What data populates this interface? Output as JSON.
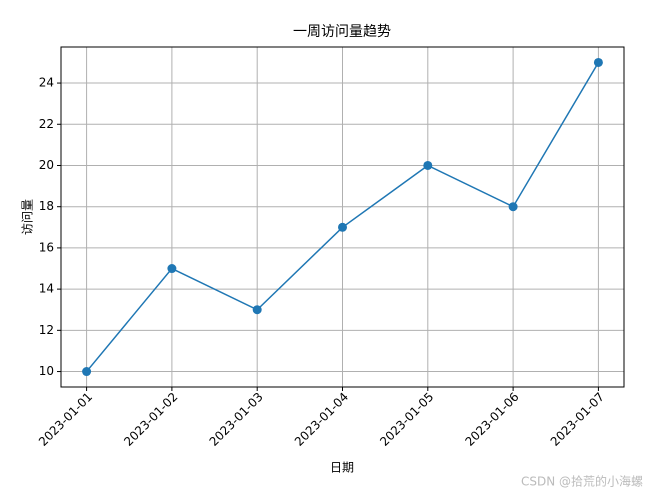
{
  "chart_data": {
    "type": "line",
    "title": "一周访问量趋势",
    "x_label": "日期",
    "y_label": "访问量",
    "categories": [
      "2023-01-01",
      "2023-01-02",
      "2023-01-03",
      "2023-01-04",
      "2023-01-05",
      "2023-01-06",
      "2023-01-07"
    ],
    "values": [
      10,
      15,
      13,
      17,
      20,
      18,
      25
    ],
    "color": "#1f77b4",
    "ylim": [
      9.25,
      25.75
    ],
    "yticks": [
      10,
      12,
      14,
      16,
      18,
      20,
      22,
      24
    ],
    "grid": true,
    "watermark": "CSDN @拾荒的小海螺"
  }
}
